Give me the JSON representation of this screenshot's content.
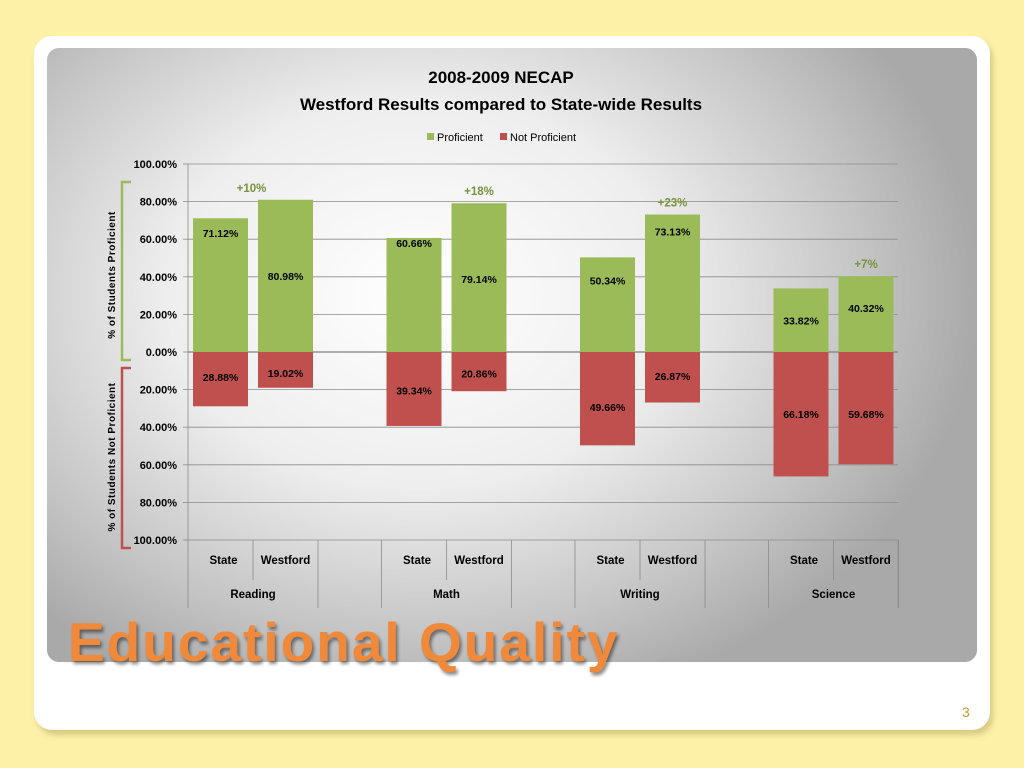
{
  "slide": {
    "heading": "Educational Quality",
    "page_number": "3"
  },
  "colors": {
    "proficient": "#9bbb59",
    "not_proficient": "#c0504d",
    "diff_label": "#77933c",
    "bracket_top": "#9bbb59",
    "bracket_bottom": "#c0504d",
    "title_orange": "#f08a3a"
  },
  "chart_data": {
    "type": "bar",
    "title": "2008-2009 NECAP",
    "subtitle": "Westford Results compared to State-wide Results",
    "legend": [
      "Proficient",
      "Not Proficient"
    ],
    "legend_position": "top",
    "ylabel_top": "% of Students Proficient",
    "ylabel_bottom": "% of Students Not Proficient",
    "y_ticks": [
      "100.00%",
      "80.00%",
      "60.00%",
      "40.00%",
      "20.00%",
      "0.00%",
      "20.00%",
      "40.00%",
      "60.00%",
      "80.00%",
      "100.00%"
    ],
    "ylim": [
      -100,
      100
    ],
    "grid": true,
    "groups": [
      {
        "name": "Reading",
        "difference": "+10%",
        "bars": [
          {
            "label": "State",
            "proficient": 71.12,
            "not_proficient": 28.88,
            "proficient_text": "71.12%",
            "not_proficient_text": "28.88%"
          },
          {
            "label": "Westford",
            "proficient": 80.98,
            "not_proficient": 19.02,
            "proficient_text": "80.98%",
            "not_proficient_text": "19.02%"
          }
        ]
      },
      {
        "name": "Math",
        "difference": "+18%",
        "bars": [
          {
            "label": "State",
            "proficient": 60.66,
            "not_proficient": 39.34,
            "proficient_text": "60.66%",
            "not_proficient_text": "39.34%"
          },
          {
            "label": "Westford",
            "proficient": 79.14,
            "not_proficient": 20.86,
            "proficient_text": "79.14%",
            "not_proficient_text": "20.86%"
          }
        ]
      },
      {
        "name": "Writing",
        "difference": "+23%",
        "bars": [
          {
            "label": "State",
            "proficient": 50.34,
            "not_proficient": 49.66,
            "proficient_text": "50.34%",
            "not_proficient_text": "49.66%"
          },
          {
            "label": "Westford",
            "proficient": 73.13,
            "not_proficient": 26.87,
            "proficient_text": "73.13%",
            "not_proficient_text": "26.87%"
          }
        ]
      },
      {
        "name": "Science",
        "difference": "+7%",
        "bars": [
          {
            "label": "State",
            "proficient": 33.82,
            "not_proficient": 66.18,
            "proficient_text": "33.82%",
            "not_proficient_text": "66.18%"
          },
          {
            "label": "Westford",
            "proficient": 40.32,
            "not_proficient": 59.68,
            "proficient_text": "40.32%",
            "not_proficient_text": "59.68%"
          }
        ]
      }
    ]
  }
}
